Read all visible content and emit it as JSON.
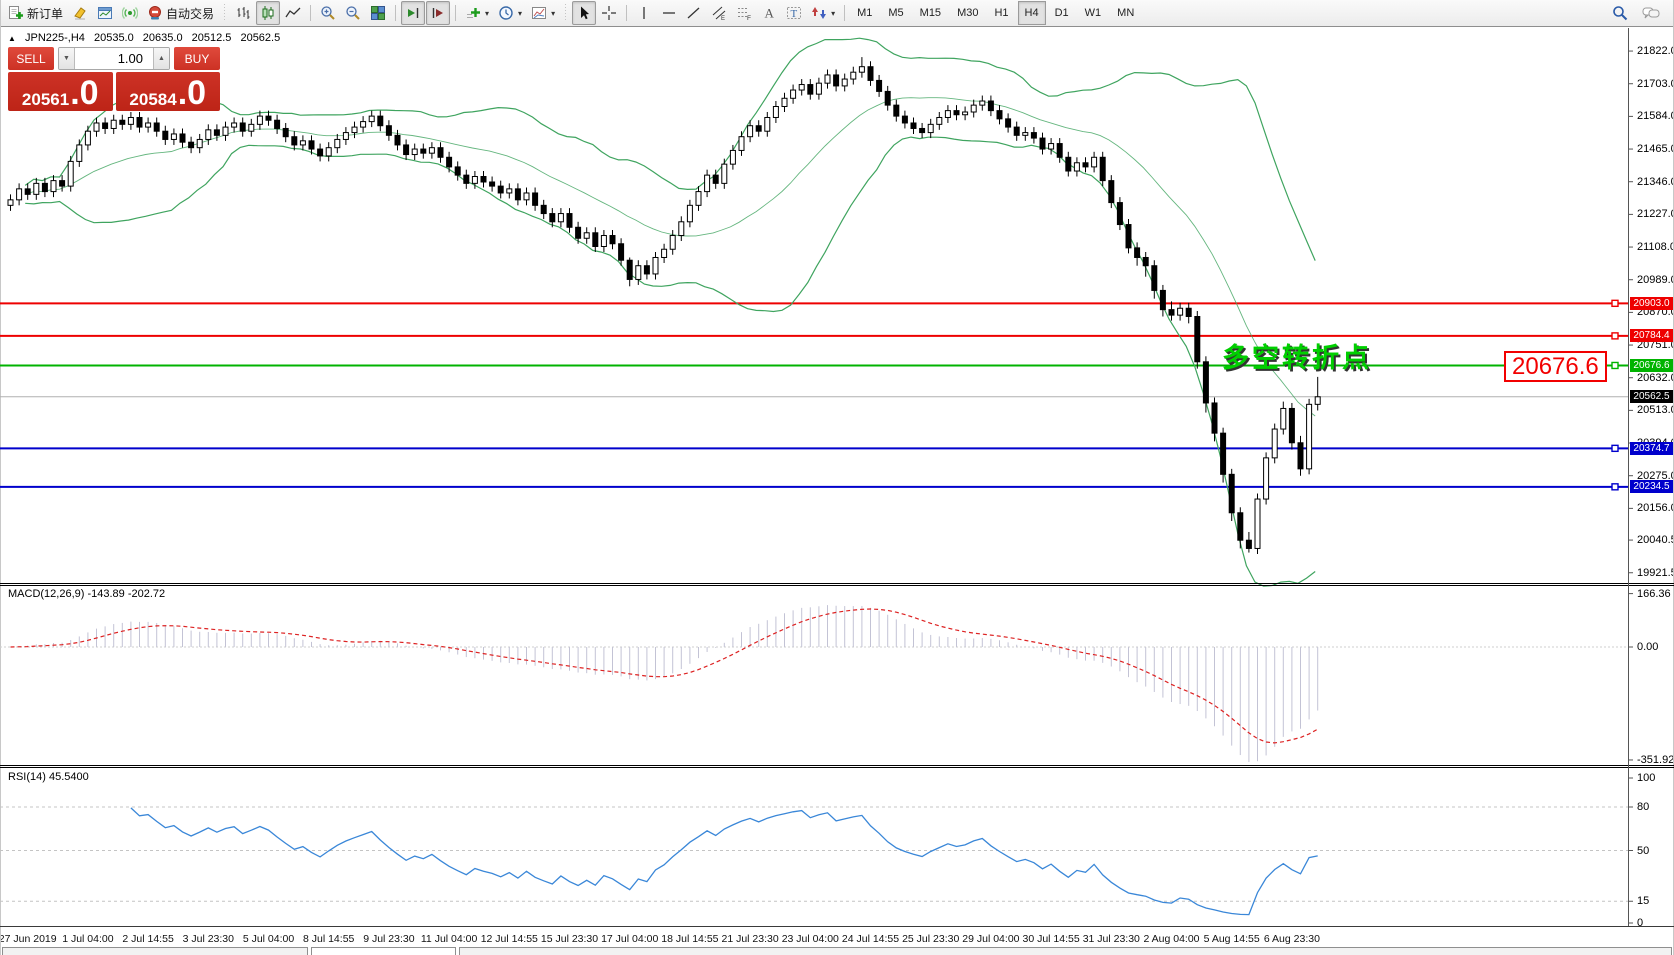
{
  "toolbar": {
    "new_order": "新订单",
    "auto_trading": "自动交易",
    "timeframes": [
      "M1",
      "M5",
      "M15",
      "M30",
      "H1",
      "H4",
      "D1",
      "W1",
      "MN"
    ],
    "active_timeframe": "H4"
  },
  "chart_header": {
    "collapse_icon": "▲",
    "symbol_period": "JPN225-,H4",
    "open": "20535.0",
    "high": "20635.0",
    "low": "20512.5",
    "close": "20562.5"
  },
  "trade_panel": {
    "sell_label": "SELL",
    "buy_label": "BUY",
    "volume": "1.00",
    "dec_icon": "▼",
    "inc_icon": "▲",
    "sell_main": "20561",
    "sell_frac": ".0",
    "buy_main": "20584",
    "buy_frac": ".0"
  },
  "annotation": {
    "text": "多空转折点",
    "callout": "20676.6"
  },
  "indicators": {
    "macd_label": "MACD(12,26,9) -143.89 -202.72",
    "rsi_label": "RSI(14) 45.5400"
  },
  "chart_data": {
    "type": "candlestick",
    "title": "JPN225-,H4",
    "symbol": "JPN225-",
    "timeframe": "H4",
    "bars_per_label": 7,
    "first_label_bar": 2,
    "x_labels": [
      "27 Jun 2019",
      "1 Jul 04:00",
      "2 Jul 14:55",
      "3 Jul 23:30",
      "5 Jul 04:00",
      "8 Jul 14:55",
      "9 Jul 23:30",
      "11 Jul 04:00",
      "12 Jul 14:55",
      "15 Jul 23:30",
      "17 Jul 04:00",
      "18 Jul 14:55",
      "21 Jul 23:30",
      "23 Jul 04:00",
      "24 Jul 14:55",
      "25 Jul 23:30",
      "29 Jul 04:00",
      "30 Jul 14:55",
      "31 Jul 23:30",
      "2 Aug 04:00",
      "5 Aug 14:55",
      "6 Aug 23:30"
    ],
    "price_ticks": [
      21822.0,
      21703.0,
      21584.0,
      21465.0,
      21346.0,
      21227.0,
      21108.0,
      20989.0,
      20870.0,
      20751.0,
      20632.0,
      20513.0,
      20394.0,
      20275.0,
      20156.0,
      20040.5,
      19921.5
    ],
    "hlines": [
      {
        "price": 20903.0,
        "label": "20903.0",
        "color": "#ee0000"
      },
      {
        "price": 20784.4,
        "label": "20784.4",
        "color": "#ee0000"
      },
      {
        "price": 20676.6,
        "label": "20676.6",
        "color": "#00b300"
      },
      {
        "price": 20374.7,
        "label": "20374.7",
        "color": "#0000cc"
      },
      {
        "price": 20234.5,
        "label": "20234.5",
        "color": "#0000cc"
      }
    ],
    "current_price": {
      "price": 20562.5,
      "label": "20562.5",
      "marker_color": "#000000",
      "line_color": "#b0b0b0"
    },
    "bollinger": {
      "period": 20,
      "deviation": 2,
      "color": "#3fa45f"
    },
    "macd": {
      "fast": 12,
      "slow": 26,
      "signal": 9,
      "hist_color": "#c3c3d5",
      "signal_color": "#dd2222",
      "ticks": [
        {
          "v": 166.36,
          "label": "166.36"
        },
        {
          "v": 0,
          "label": "0.00"
        },
        {
          "v": -351.92,
          "label": "-351.92"
        }
      ]
    },
    "rsi": {
      "period": 14,
      "color": "#3a87d8",
      "levels": [
        80,
        50,
        15
      ],
      "ticks": [
        {
          "v": 100,
          "label": "100"
        },
        {
          "v": 80,
          "label": "80"
        },
        {
          "v": 50,
          "label": "50"
        },
        {
          "v": 15,
          "label": "15"
        },
        {
          "v": 0,
          "label": "0"
        }
      ]
    },
    "ohlc": [
      [
        21260,
        21300,
        21240,
        21280
      ],
      [
        21280,
        21340,
        21260,
        21320
      ],
      [
        21320,
        21340,
        21280,
        21300
      ],
      [
        21300,
        21360,
        21280,
        21340
      ],
      [
        21340,
        21360,
        21290,
        21310
      ],
      [
        21310,
        21370,
        21290,
        21350
      ],
      [
        21350,
        21370,
        21310,
        21330
      ],
      [
        21330,
        21440,
        21310,
        21420
      ],
      [
        21420,
        21500,
        21400,
        21480
      ],
      [
        21480,
        21550,
        21460,
        21530
      ],
      [
        21530,
        21580,
        21510,
        21560
      ],
      [
        21560,
        21580,
        21520,
        21540
      ],
      [
        21540,
        21590,
        21520,
        21570
      ],
      [
        21570,
        21590,
        21535,
        21555
      ],
      [
        21555,
        21600,
        21535,
        21580
      ],
      [
        21580,
        21600,
        21525,
        21545
      ],
      [
        21545,
        21580,
        21525,
        21560
      ],
      [
        21560,
        21580,
        21510,
        21530
      ],
      [
        21530,
        21550,
        21480,
        21500
      ],
      [
        21500,
        21540,
        21480,
        21520
      ],
      [
        21520,
        21540,
        21470,
        21490
      ],
      [
        21490,
        21510,
        21450,
        21470
      ],
      [
        21470,
        21520,
        21450,
        21500
      ],
      [
        21500,
        21555,
        21480,
        21535
      ],
      [
        21535,
        21555,
        21495,
        21515
      ],
      [
        21515,
        21565,
        21495,
        21545
      ],
      [
        21545,
        21580,
        21525,
        21560
      ],
      [
        21560,
        21580,
        21510,
        21530
      ],
      [
        21530,
        21575,
        21510,
        21555
      ],
      [
        21555,
        21605,
        21535,
        21585
      ],
      [
        21585,
        21605,
        21550,
        21570
      ],
      [
        21570,
        21590,
        21520,
        21540
      ],
      [
        21540,
        21560,
        21490,
        21510
      ],
      [
        21510,
        21530,
        21460,
        21480
      ],
      [
        21480,
        21515,
        21460,
        21495
      ],
      [
        21495,
        21515,
        21445,
        21465
      ],
      [
        21465,
        21485,
        21420,
        21440
      ],
      [
        21440,
        21490,
        21420,
        21470
      ],
      [
        21470,
        21520,
        21450,
        21500
      ],
      [
        21500,
        21545,
        21480,
        21525
      ],
      [
        21525,
        21565,
        21505,
        21545
      ],
      [
        21545,
        21585,
        21525,
        21565
      ],
      [
        21565,
        21605,
        21545,
        21585
      ],
      [
        21585,
        21605,
        21530,
        21550
      ],
      [
        21550,
        21570,
        21495,
        21515
      ],
      [
        21515,
        21535,
        21460,
        21480
      ],
      [
        21480,
        21500,
        21425,
        21445
      ],
      [
        21445,
        21485,
        21425,
        21465
      ],
      [
        21465,
        21485,
        21430,
        21450
      ],
      [
        21450,
        21490,
        21430,
        21470
      ],
      [
        21470,
        21490,
        21415,
        21435
      ],
      [
        21435,
        21455,
        21380,
        21400
      ],
      [
        21400,
        21420,
        21350,
        21370
      ],
      [
        21370,
        21390,
        21320,
        21340
      ],
      [
        21340,
        21385,
        21320,
        21365
      ],
      [
        21365,
        21385,
        21325,
        21345
      ],
      [
        21345,
        21365,
        21310,
        21330
      ],
      [
        21330,
        21350,
        21285,
        21305
      ],
      [
        21305,
        21340,
        21285,
        21320
      ],
      [
        21320,
        21340,
        21260,
        21280
      ],
      [
        21280,
        21325,
        21260,
        21305
      ],
      [
        21305,
        21325,
        21240,
        21260
      ],
      [
        21260,
        21280,
        21210,
        21230
      ],
      [
        21230,
        21250,
        21180,
        21200
      ],
      [
        21200,
        21250,
        21180,
        21230
      ],
      [
        21230,
        21250,
        21160,
        21180
      ],
      [
        21180,
        21200,
        21120,
        21140
      ],
      [
        21140,
        21180,
        21120,
        21160
      ],
      [
        21160,
        21180,
        21090,
        21110
      ],
      [
        21110,
        21170,
        21090,
        21150
      ],
      [
        21150,
        21170,
        21100,
        21120
      ],
      [
        21120,
        21140,
        21040,
        21060
      ],
      [
        21060,
        21070,
        20965,
        20990
      ],
      [
        20990,
        21060,
        20970,
        21040
      ],
      [
        21040,
        21060,
        20990,
        21010
      ],
      [
        21010,
        21090,
        20990,
        21070
      ],
      [
        21070,
        21120,
        21050,
        21100
      ],
      [
        21100,
        21170,
        21080,
        21150
      ],
      [
        21150,
        21220,
        21130,
        21200
      ],
      [
        21200,
        21280,
        21180,
        21260
      ],
      [
        21260,
        21330,
        21240,
        21310
      ],
      [
        21310,
        21390,
        21290,
        21370
      ],
      [
        21370,
        21390,
        21320,
        21340
      ],
      [
        21340,
        21430,
        21320,
        21410
      ],
      [
        21410,
        21480,
        21390,
        21460
      ],
      [
        21460,
        21530,
        21440,
        21510
      ],
      [
        21510,
        21570,
        21490,
        21550
      ],
      [
        21550,
        21570,
        21510,
        21530
      ],
      [
        21530,
        21600,
        21510,
        21580
      ],
      [
        21580,
        21640,
        21560,
        21620
      ],
      [
        21620,
        21670,
        21600,
        21650
      ],
      [
        21650,
        21700,
        21630,
        21680
      ],
      [
        21680,
        21720,
        21660,
        21700
      ],
      [
        21700,
        21720,
        21645,
        21665
      ],
      [
        21665,
        21725,
        21645,
        21705
      ],
      [
        21705,
        21755,
        21685,
        21735
      ],
      [
        21735,
        21755,
        21675,
        21695
      ],
      [
        21695,
        21740,
        21675,
        21720
      ],
      [
        21720,
        21765,
        21700,
        21745
      ],
      [
        21745,
        21800,
        21725,
        21765
      ],
      [
        21765,
        21785,
        21695,
        21715
      ],
      [
        21715,
        21735,
        21655,
        21675
      ],
      [
        21675,
        21695,
        21605,
        21625
      ],
      [
        21625,
        21645,
        21565,
        21585
      ],
      [
        21585,
        21605,
        21540,
        21560
      ],
      [
        21560,
        21580,
        21520,
        21540
      ],
      [
        21540,
        21560,
        21505,
        21525
      ],
      [
        21525,
        21575,
        21505,
        21555
      ],
      [
        21555,
        21600,
        21535,
        21580
      ],
      [
        21580,
        21625,
        21560,
        21605
      ],
      [
        21605,
        21625,
        21570,
        21590
      ],
      [
        21590,
        21620,
        21570,
        21600
      ],
      [
        21600,
        21645,
        21580,
        21625
      ],
      [
        21625,
        21660,
        21605,
        21640
      ],
      [
        21640,
        21660,
        21585,
        21605
      ],
      [
        21605,
        21625,
        21555,
        21575
      ],
      [
        21575,
        21595,
        21525,
        21545
      ],
      [
        21545,
        21565,
        21495,
        21515
      ],
      [
        21515,
        21545,
        21495,
        21525
      ],
      [
        21525,
        21545,
        21485,
        21505
      ],
      [
        21505,
        21525,
        21445,
        21465
      ],
      [
        21465,
        21505,
        21445,
        21485
      ],
      [
        21485,
        21505,
        21415,
        21435
      ],
      [
        21435,
        21455,
        21365,
        21385
      ],
      [
        21385,
        21435,
        21365,
        21415
      ],
      [
        21415,
        21435,
        21380,
        21400
      ],
      [
        21400,
        21455,
        21380,
        21435
      ],
      [
        21435,
        21455,
        21330,
        21350
      ],
      [
        21350,
        21370,
        21250,
        21270
      ],
      [
        21270,
        21290,
        21170,
        21190
      ],
      [
        21190,
        21210,
        21085,
        21105
      ],
      [
        21105,
        21125,
        21040,
        21070
      ],
      [
        21070,
        21090,
        21000,
        21040
      ],
      [
        21040,
        21060,
        20920,
        20950
      ],
      [
        20950,
        20970,
        20855,
        20880
      ],
      [
        20880,
        20910,
        20840,
        20860
      ],
      [
        20860,
        20905,
        20840,
        20885
      ],
      [
        20885,
        20905,
        20830,
        20855
      ],
      [
        20855,
        20875,
        20665,
        20690
      ],
      [
        20690,
        20710,
        20505,
        20540
      ],
      [
        20540,
        20560,
        20400,
        20430
      ],
      [
        20430,
        20450,
        20250,
        20280
      ],
      [
        20280,
        20300,
        20110,
        20140
      ],
      [
        20140,
        20160,
        20010,
        20040
      ],
      [
        20040,
        20070,
        19995,
        20010
      ],
      [
        20010,
        20210,
        19990,
        20190
      ],
      [
        20190,
        20360,
        20170,
        20340
      ],
      [
        20340,
        20465,
        20320,
        20445
      ],
      [
        20445,
        20545,
        20425,
        20520
      ],
      [
        20520,
        20540,
        20370,
        20395
      ],
      [
        20395,
        20420,
        20275,
        20300
      ],
      [
        20300,
        20555,
        20280,
        20535
      ],
      [
        20535,
        20635,
        20512.5,
        20562.5
      ]
    ]
  }
}
